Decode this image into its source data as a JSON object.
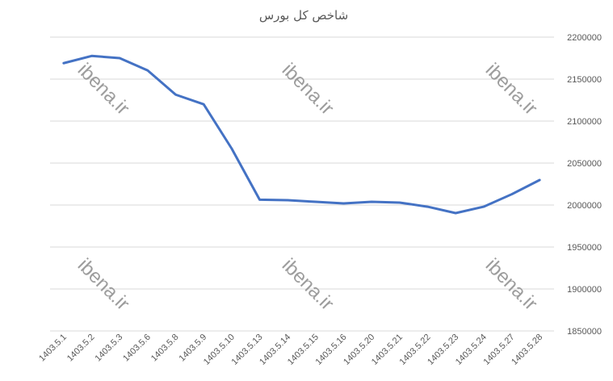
{
  "chart_data": {
    "type": "line",
    "title": "شاخص کل بورس",
    "xlabel": "",
    "ylabel": "",
    "categories": [
      "1403.5.1",
      "1403.5.2",
      "1403.5.3",
      "1403.5.6",
      "1403.5.8",
      "1403.5.9",
      "1403.5.10",
      "1403.5.13",
      "1403.5.14",
      "1403.5.15",
      "1403.5.16",
      "1403.5.20",
      "1403.5.21",
      "1403.5.22",
      "1403.5.23",
      "1403.5.24",
      "1403.5.27",
      "1403.5.28"
    ],
    "values": [
      2169000,
      2177600,
      2175000,
      2160300,
      2131500,
      2120000,
      2067300,
      2006400,
      2005800,
      2003800,
      2001900,
      2003800,
      2002900,
      1998000,
      1990400,
      1998000,
      2012800,
      2029800
    ],
    "ylim": [
      1850000,
      2200000
    ],
    "yticks": [
      1850000,
      1900000,
      1950000,
      2000000,
      2050000,
      2100000,
      2150000,
      2200000
    ],
    "yaxis_side": "right",
    "grid": true,
    "line_color": "#4472c4",
    "grid_color": "#d9d9d9",
    "watermark": "ibena.ir"
  }
}
